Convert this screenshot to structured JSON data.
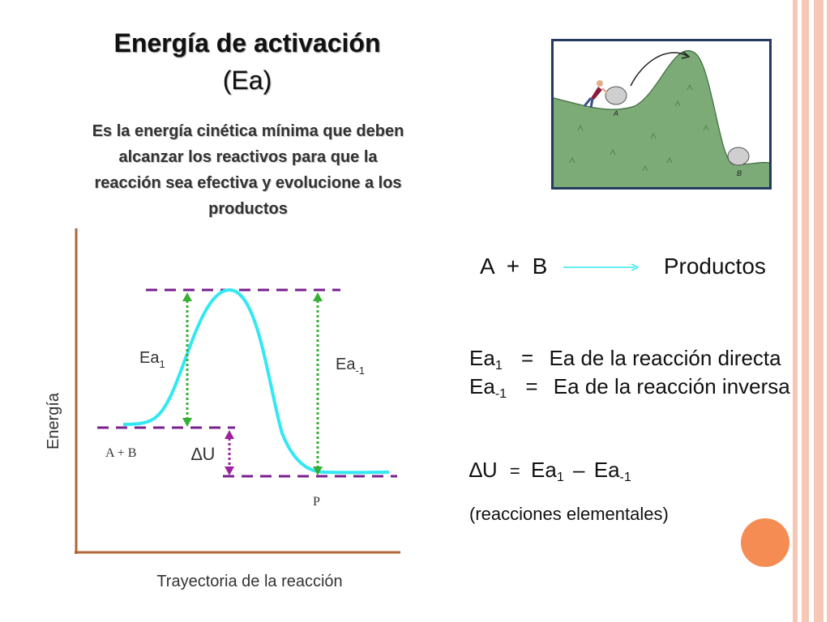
{
  "title": {
    "main": "Energía de activación",
    "sub": "(Ea)"
  },
  "definition": "Es la energía cinética mínima que deben alcanzar los reactivos para que la reacción sea efectiva y evolucione a los productos",
  "illustration": {
    "label_a": "A",
    "label_b": "B"
  },
  "diagram": {
    "y_label": "Energía",
    "x_label": "Trayectoria  de la  reacción",
    "ea1": {
      "base": "Ea",
      "sub": "1"
    },
    "ea_minus1": {
      "base": "Ea",
      "sub": "-1"
    },
    "delta_u": "∆U",
    "reactants_label": "A + B",
    "products_label": "P"
  },
  "reaction": {
    "reactants": "A  +  B",
    "products": "Productos"
  },
  "definitions": {
    "forward": {
      "base": "Ea",
      "sub": "1",
      "eq": "=",
      "text": "Ea de la reacción directa"
    },
    "reverse": {
      "base": "Ea",
      "sub": "-1",
      "eq": "=",
      "text": "Ea de la reacción inversa"
    }
  },
  "formula": {
    "lhs": "∆U",
    "eq": "=",
    "t1": "Ea",
    "t1_sub": "1",
    "minus": "–",
    "t2": "Ea",
    "t2_sub": "-1"
  },
  "note": "(reacciones elementales)",
  "colors": {
    "axis": "#b0653a",
    "curve": "#33e8f2",
    "dashed": "#7a1f8e",
    "green_arrow": "#35b035",
    "purple_arrow": "#a020a0",
    "accent_circle": "#f58c53",
    "stripes": "#f7c7b6"
  }
}
